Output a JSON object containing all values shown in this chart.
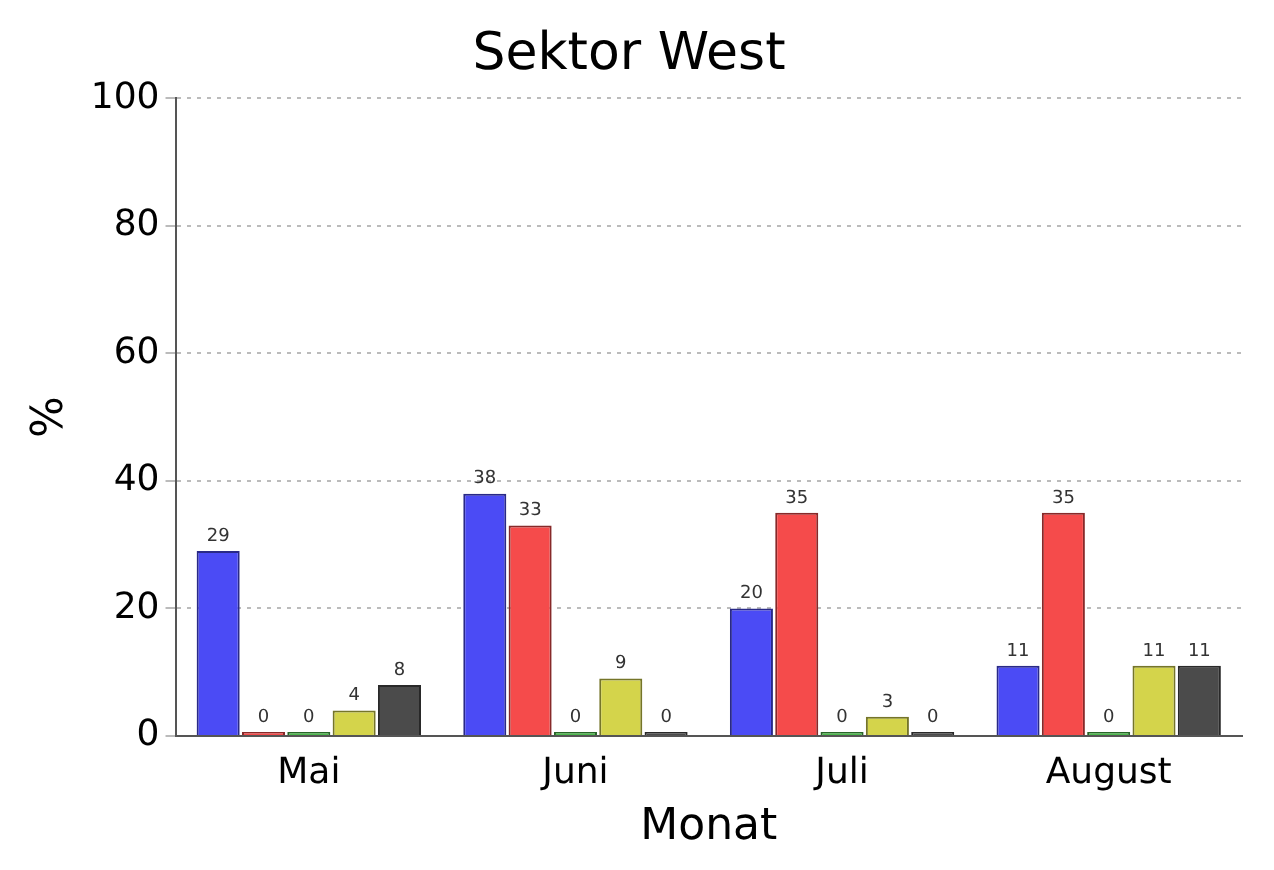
{
  "chart_data": {
    "type": "bar",
    "title": "Sektor West",
    "xlabel": "Monat",
    "ylabel": "%",
    "categories": [
      "Mai",
      "Juni",
      "Juli",
      "August"
    ],
    "series": [
      {
        "color": "#4b4bf5",
        "values": [
          29,
          38,
          20,
          11
        ]
      },
      {
        "color": "#f54b4b",
        "values": [
          0,
          33,
          35,
          35
        ]
      },
      {
        "color": "#4bb84b",
        "values": [
          0,
          0,
          0,
          0
        ]
      },
      {
        "color": "#d4d44b",
        "values": [
          4,
          9,
          3,
          11
        ]
      },
      {
        "color": "#4b4b4b",
        "values": [
          8,
          0,
          0,
          11
        ]
      }
    ],
    "ylim": [
      0,
      100
    ],
    "yticks": [
      0,
      20,
      40,
      60,
      80,
      100
    ],
    "grid": "y",
    "data_labels": true,
    "legend": false
  }
}
